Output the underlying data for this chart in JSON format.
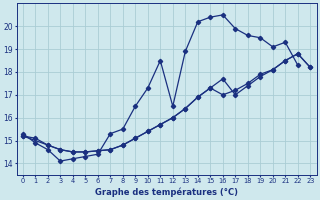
{
  "xlabel": "Graphe des températures (°C)",
  "bg_color": "#cfe8ed",
  "grid_color": "#aacdd5",
  "line_color": "#1a3080",
  "xlim": [
    -0.5,
    23.5
  ],
  "ylim": [
    13.5,
    21.0
  ],
  "xticks": [
    0,
    1,
    2,
    3,
    4,
    5,
    6,
    7,
    8,
    9,
    10,
    11,
    12,
    13,
    14,
    15,
    16,
    17,
    18,
    19,
    20,
    21,
    22,
    23
  ],
  "yticks": [
    14,
    15,
    16,
    17,
    18,
    19,
    20
  ],
  "curve1_x": [
    0,
    1,
    2,
    3,
    4,
    5,
    6,
    7,
    8,
    9,
    10,
    11,
    12,
    13,
    14,
    15,
    16,
    17,
    18,
    19,
    20,
    21,
    22
  ],
  "curve1_y": [
    15.3,
    14.9,
    14.6,
    14.1,
    14.2,
    14.3,
    14.4,
    15.3,
    15.5,
    16.5,
    17.3,
    18.5,
    16.5,
    18.9,
    20.2,
    20.4,
    20.5,
    19.9,
    19.6,
    19.5,
    19.1,
    19.3,
    18.3
  ],
  "curve2_x": [
    0,
    1,
    2,
    3,
    4,
    5,
    6,
    7,
    8,
    9,
    10,
    11,
    12,
    13,
    14,
    15,
    16,
    17,
    18,
    19,
    20,
    21,
    22,
    23
  ],
  "curve2_y": [
    15.2,
    15.1,
    14.8,
    14.6,
    14.5,
    14.5,
    14.55,
    14.6,
    14.8,
    15.1,
    15.4,
    15.7,
    16.0,
    16.4,
    16.9,
    17.3,
    17.0,
    17.2,
    17.5,
    17.9,
    18.1,
    18.5,
    18.8,
    18.2
  ],
  "curve3_x": [
    0,
    2,
    3,
    4,
    5,
    6,
    7,
    8,
    9,
    10,
    11,
    12,
    13,
    14,
    15,
    16,
    17,
    18,
    19,
    20,
    21,
    22,
    23
  ],
  "curve3_y": [
    15.2,
    14.8,
    14.6,
    14.5,
    14.5,
    14.55,
    14.6,
    14.8,
    15.1,
    15.4,
    15.7,
    16.0,
    16.4,
    16.9,
    17.3,
    17.7,
    17.0,
    17.4,
    17.8,
    18.1,
    18.5,
    18.8,
    18.2
  ]
}
